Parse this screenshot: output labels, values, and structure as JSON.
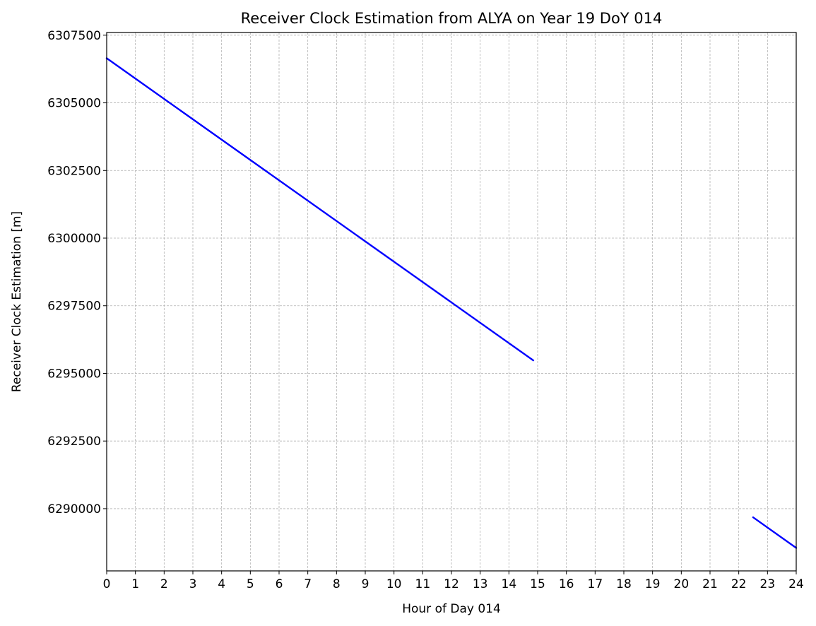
{
  "chart_data": {
    "type": "line",
    "title": "Receiver Clock Estimation from ALYA on Year 19 DoY 014",
    "xlabel": "Hour of Day 014",
    "ylabel": "Receiver Clock Estimation [m]",
    "xlim": [
      0,
      24
    ],
    "ylim": [
      6287700,
      6307600
    ],
    "xticks": [
      0,
      1,
      2,
      3,
      4,
      5,
      6,
      7,
      8,
      9,
      10,
      11,
      12,
      13,
      14,
      15,
      16,
      17,
      18,
      19,
      20,
      21,
      22,
      23,
      24
    ],
    "xtick_labels": [
      "0",
      "1",
      "2",
      "3",
      "4",
      "5",
      "6",
      "7",
      "8",
      "9",
      "10",
      "11",
      "12",
      "13",
      "14",
      "15",
      "16",
      "17",
      "18",
      "19",
      "20",
      "21",
      "22",
      "23",
      "24"
    ],
    "yticks": [
      6290000,
      6292500,
      6295000,
      6297500,
      6300000,
      6302500,
      6305000,
      6307500
    ],
    "ytick_labels": [
      "6290000",
      "6292500",
      "6295000",
      "6297500",
      "6300000",
      "6302500",
      "6305000",
      "6307500"
    ],
    "grid": true,
    "line_color": "#0000ff",
    "series": [
      {
        "segments": [
          {
            "x": [
              0,
              14.85
            ],
            "y": [
              6306650,
              6295480
            ]
          },
          {
            "x": [
              22.5,
              24
            ],
            "y": [
              6289680,
              6288550
            ]
          }
        ]
      }
    ]
  }
}
